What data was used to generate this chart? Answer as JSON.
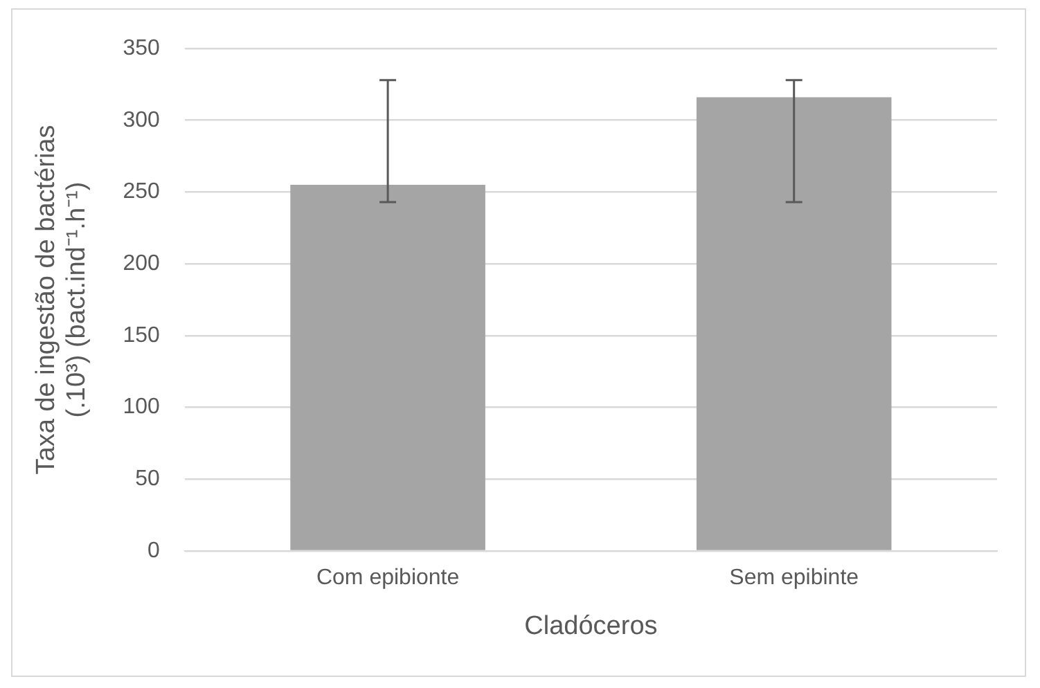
{
  "chart_data": {
    "type": "bar",
    "xlabel": "Cladóceros",
    "ylabel": "Taxa de ingestão de bactérias\n(.10³) (bact.ind⁻¹.h⁻¹)",
    "categories": [
      "Com epibionte",
      "Sem epibinte"
    ],
    "values": [
      255,
      316
    ],
    "color": "#a5a5a5",
    "errors": [
      [
        243,
        328
      ],
      [
        243,
        328
      ]
    ],
    "ylim": [
      0,
      350
    ],
    "yticks": [
      0,
      50,
      100,
      150,
      200,
      250,
      300,
      350
    ],
    "grid": "y",
    "legend": false
  }
}
